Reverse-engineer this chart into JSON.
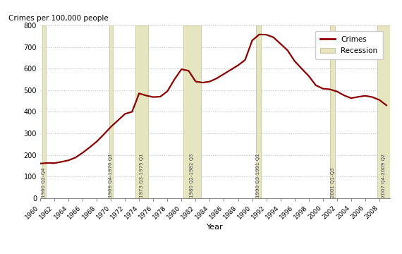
{
  "ylabel": "Crimes per 100,000 people",
  "xlabel": "Year",
  "ylim": [
    0,
    800
  ],
  "yticks": [
    0,
    100,
    200,
    300,
    400,
    500,
    600,
    700,
    800
  ],
  "xlim": [
    1960,
    2009.5
  ],
  "xticks": [
    1960,
    1962,
    1964,
    1966,
    1968,
    1970,
    1972,
    1974,
    1976,
    1978,
    1980,
    1982,
    1984,
    1986,
    1988,
    1990,
    1992,
    1994,
    1996,
    1998,
    2000,
    2002,
    2004,
    2006,
    2008
  ],
  "crime_data": {
    "years": [
      1960,
      1961,
      1962,
      1963,
      1964,
      1965,
      1966,
      1967,
      1968,
      1969,
      1970,
      1971,
      1972,
      1973,
      1974,
      1975,
      1976,
      1977,
      1978,
      1979,
      1980,
      1981,
      1982,
      1983,
      1984,
      1985,
      1986,
      1987,
      1988,
      1989,
      1990,
      1991,
      1992,
      1993,
      1994,
      1995,
      1996,
      1997,
      1998,
      1999,
      2000,
      2001,
      2002,
      2003,
      2004,
      2005,
      2006,
      2007,
      2008,
      2009
    ],
    "values": [
      160,
      163,
      162,
      168,
      175,
      188,
      210,
      235,
      262,
      295,
      330,
      360,
      390,
      400,
      485,
      475,
      468,
      470,
      495,
      550,
      597,
      590,
      540,
      535,
      540,
      555,
      575,
      595,
      615,
      640,
      730,
      758,
      757,
      745,
      715,
      685,
      635,
      600,
      566,
      523,
      507,
      504,
      494,
      476,
      463,
      469,
      474,
      468,
      455,
      430
    ]
  },
  "recessions": [
    {
      "start": 1960.25,
      "end": 1960.83,
      "label": "1960 Q2-Q4"
    },
    {
      "start": 1969.75,
      "end": 1970.25,
      "label": "1969 Q4-1970 Q1"
    },
    {
      "start": 1973.5,
      "end": 1975.25,
      "label": "1973 Q3-1975 Q1"
    },
    {
      "start": 1980.25,
      "end": 1982.75,
      "label": "1980 Q2-1982 Q3"
    },
    {
      "start": 1990.5,
      "end": 1991.25,
      "label": "1990 Q3-1991 Q1"
    },
    {
      "start": 2001.0,
      "end": 2001.75,
      "label": "2001 Q1-Q3"
    },
    {
      "start": 2007.75,
      "end": 2009.5,
      "label": "2007 Q4-2009 Q2"
    }
  ],
  "line_color": "#8B0000",
  "recession_color": "#E5E5C0",
  "recession_edge_color": "#C8C8A0",
  "background_color": "#FFFFFF",
  "grid_color": "#BBBBBB",
  "legend_crimes_color": "#8B0000",
  "legend_recession_color": "#E5E5C0"
}
